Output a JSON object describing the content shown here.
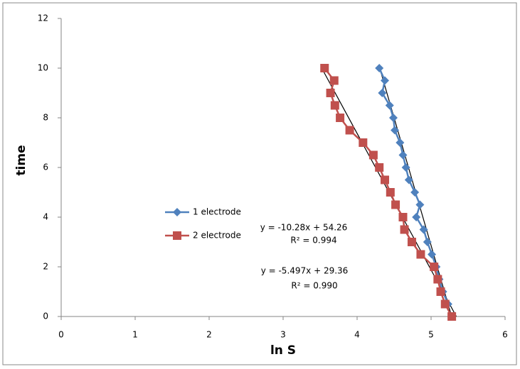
{
  "chart_data": {
    "type": "scatter",
    "x_label": "ln S",
    "y_label": "time",
    "xlim": [
      0,
      6
    ],
    "xticks": [
      0,
      1,
      2,
      3,
      4,
      5,
      6
    ],
    "ylim": [
      0,
      12
    ],
    "yticks": [
      0,
      2,
      4,
      6,
      8,
      10,
      12
    ],
    "grid": false,
    "legend": "left",
    "series": [
      {
        "name": "1 electrode",
        "color": "#4f81bd",
        "marker": "diamond",
        "x": [
          4.3,
          4.375,
          4.34,
          4.44,
          4.49,
          4.51,
          4.58,
          4.62,
          4.66,
          4.7,
          4.78,
          4.85,
          4.8,
          4.9,
          4.95,
          5.01,
          5.07,
          5.11,
          5.16,
          5.23
        ],
        "values": [
          10,
          9.5,
          9,
          8.5,
          8,
          7.5,
          7,
          6.5,
          6,
          5.5,
          5,
          4.5,
          4,
          3.5,
          3,
          2.5,
          2,
          1.5,
          1,
          0.5
        ]
      },
      {
        "name": "2 electrode",
        "color": "#c0504d",
        "marker": "square",
        "x": [
          3.56,
          3.69,
          3.64,
          3.7,
          3.77,
          3.9,
          4.08,
          4.22,
          4.3,
          4.375,
          4.45,
          4.52,
          4.62,
          4.64,
          4.74,
          4.86,
          5.04,
          5.09,
          5.13,
          5.19,
          5.28
        ],
        "values": [
          10,
          9.5,
          9,
          8.5,
          8,
          7.5,
          7,
          6.5,
          6,
          5.5,
          5,
          4.5,
          4,
          3.5,
          3,
          2.5,
          2,
          1.5,
          1,
          0.5,
          0
        ]
      }
    ],
    "trendlines": [
      {
        "equation": "y = -10.28x + 54.26",
        "r2": "R² = 0.994",
        "slope": -10.28,
        "intercept": 54.26
      },
      {
        "equation": "y = -5.497x + 29.36",
        "r2": "R² = 0.990",
        "slope": -5.497,
        "intercept": 29.36
      }
    ]
  }
}
